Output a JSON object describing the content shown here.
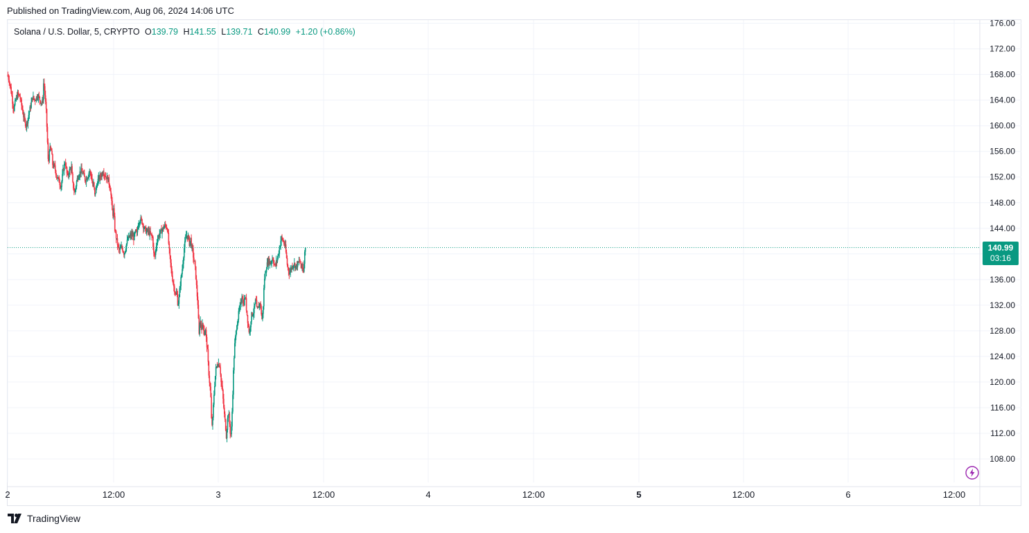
{
  "header": {
    "published": "Published on TradingView.com, Aug 06, 2024 14:06 UTC"
  },
  "legend": {
    "symbol": "Solana / U.S. Dollar, 5, CRYPTO",
    "open_label": "O",
    "open": "139.79",
    "high_label": "H",
    "high": "141.55",
    "low_label": "L",
    "low": "139.71",
    "close_label": "C",
    "close": "140.99",
    "change": "+1.20 (+0.86%)"
  },
  "price_tag": {
    "last": "140.99",
    "countdown": "03:16"
  },
  "brand": {
    "name": "TradingView"
  },
  "colors": {
    "up": "#089981",
    "down": "#f23645",
    "grid": "#f0f3fa",
    "text": "#131722"
  },
  "icons": {
    "flash": "lightning-icon",
    "logo": "tradingview-logo-icon"
  },
  "chart_data": {
    "type": "candlestick",
    "title": "Solana / U.S. Dollar, 5, CRYPTO",
    "interval": "5",
    "ylim": [
      104,
      177
    ],
    "y_ticks": [
      "108.00",
      "112.00",
      "116.00",
      "120.00",
      "124.00",
      "128.00",
      "132.00",
      "136.00",
      "140.00",
      "144.00",
      "148.00",
      "152.00",
      "156.00",
      "160.00",
      "164.00",
      "168.00",
      "172.00",
      "176.00"
    ],
    "x_ticks": [
      "2",
      "12:00",
      "3",
      "12:00",
      "4",
      "12:00",
      "5",
      "12:00",
      "6",
      "12:00"
    ],
    "x_ticks_bold": [
      "5"
    ],
    "last_price": 140.99,
    "series_path": [
      [
        0.0,
        168.0
      ],
      [
        0.01,
        167.0
      ],
      [
        0.02,
        165.0
      ],
      [
        0.03,
        162.5
      ],
      [
        0.04,
        164.0
      ],
      [
        0.05,
        165.0
      ],
      [
        0.06,
        164.5
      ],
      [
        0.08,
        161.0
      ],
      [
        0.09,
        160.0
      ],
      [
        0.1,
        161.5
      ],
      [
        0.11,
        163.0
      ],
      [
        0.12,
        164.5
      ],
      [
        0.13,
        164.0
      ],
      [
        0.145,
        164.8
      ],
      [
        0.155,
        164.0
      ],
      [
        0.165,
        163.5
      ],
      [
        0.17,
        164.5
      ],
      [
        0.173,
        167.3
      ],
      [
        0.178,
        165.0
      ],
      [
        0.185,
        162.0
      ],
      [
        0.19,
        158.0
      ],
      [
        0.195,
        153.5
      ],
      [
        0.2,
        156.5
      ],
      [
        0.21,
        156.0
      ],
      [
        0.215,
        154.0
      ],
      [
        0.225,
        153.5
      ],
      [
        0.235,
        152.0
      ],
      [
        0.245,
        151.5
      ],
      [
        0.255,
        150.5
      ],
      [
        0.265,
        153.0
      ],
      [
        0.275,
        154.5
      ],
      [
        0.285,
        152.0
      ],
      [
        0.295,
        153.0
      ],
      [
        0.305,
        153.5
      ],
      [
        0.31,
        151.0
      ],
      [
        0.32,
        149.5
      ],
      [
        0.33,
        151.5
      ],
      [
        0.34,
        152.5
      ],
      [
        0.35,
        153.0
      ],
      [
        0.36,
        152.5
      ],
      [
        0.37,
        151.5
      ],
      [
        0.38,
        152.0
      ],
      [
        0.39,
        153.0
      ],
      [
        0.4,
        152.0
      ],
      [
        0.405,
        150.5
      ],
      [
        0.41,
        151.0
      ],
      [
        0.415,
        149.0
      ],
      [
        0.42,
        150.0
      ],
      [
        0.43,
        151.5
      ],
      [
        0.44,
        152.0
      ],
      [
        0.45,
        152.5
      ],
      [
        0.455,
        153.0
      ],
      [
        0.46,
        152.5
      ],
      [
        0.47,
        152.0
      ],
      [
        0.48,
        151.5
      ],
      [
        0.49,
        150.0
      ],
      [
        0.5,
        146.0
      ],
      [
        0.505,
        147.0
      ],
      [
        0.51,
        144.0
      ],
      [
        0.52,
        142.0
      ],
      [
        0.53,
        140.5
      ],
      [
        0.545,
        141.0
      ],
      [
        0.555,
        140.0
      ],
      [
        0.565,
        141.5
      ],
      [
        0.575,
        142.5
      ],
      [
        0.59,
        143.0
      ],
      [
        0.6,
        142.5
      ],
      [
        0.61,
        143.5
      ],
      [
        0.615,
        143.0
      ],
      [
        0.62,
        144.5
      ],
      [
        0.63,
        145.5
      ],
      [
        0.64,
        145.0
      ],
      [
        0.65,
        144.0
      ],
      [
        0.66,
        143.5
      ],
      [
        0.67,
        143.5
      ],
      [
        0.68,
        143.0
      ],
      [
        0.69,
        142.5
      ],
      [
        0.695,
        140.0
      ],
      [
        0.7,
        139.5
      ],
      [
        0.71,
        142.0
      ],
      [
        0.72,
        143.0
      ],
      [
        0.73,
        143.5
      ],
      [
        0.74,
        144.0
      ],
      [
        0.75,
        144.5
      ],
      [
        0.76,
        144.0
      ],
      [
        0.765,
        142.0
      ],
      [
        0.77,
        140.0
      ],
      [
        0.78,
        137.0
      ],
      [
        0.79,
        135.0
      ],
      [
        0.8,
        133.5
      ],
      [
        0.805,
        134.0
      ],
      [
        0.81,
        132.0
      ],
      [
        0.815,
        133.0
      ],
      [
        0.82,
        135.0
      ],
      [
        0.83,
        137.5
      ],
      [
        0.84,
        141.0
      ],
      [
        0.85,
        143.0
      ],
      [
        0.86,
        142.5
      ],
      [
        0.865,
        141.5
      ],
      [
        0.87,
        142.5
      ],
      [
        0.875,
        141.0
      ],
      [
        0.88,
        140.5
      ],
      [
        0.885,
        139.0
      ],
      [
        0.89,
        138.5
      ],
      [
        0.895,
        136.5
      ],
      [
        0.9,
        134.0
      ],
      [
        0.905,
        132.0
      ],
      [
        0.91,
        127.0
      ],
      [
        0.915,
        130.0
      ],
      [
        0.92,
        128.5
      ],
      [
        0.93,
        129.0
      ],
      [
        0.935,
        127.5
      ],
      [
        0.94,
        128.5
      ],
      [
        0.945,
        126.5
      ],
      [
        0.95,
        125.0
      ],
      [
        0.955,
        122.0
      ],
      [
        0.96,
        120.0
      ],
      [
        0.965,
        118.5
      ],
      [
        0.97,
        113.0
      ],
      [
        0.975,
        114.0
      ],
      [
        0.98,
        117.5
      ],
      [
        0.985,
        120.0
      ],
      [
        0.99,
        122.0
      ],
      [
        1.0,
        123.0
      ],
      [
        1.01,
        122.5
      ],
      [
        1.015,
        120.0
      ],
      [
        1.02,
        119.0
      ],
      [
        1.025,
        117.0
      ],
      [
        1.03,
        115.0
      ],
      [
        1.035,
        113.5
      ],
      [
        1.04,
        111.5
      ],
      [
        1.045,
        114.0
      ],
      [
        1.05,
        115.5
      ],
      [
        1.055,
        113.5
      ],
      [
        1.06,
        111.5
      ],
      [
        1.065,
        113.0
      ],
      [
        1.07,
        118.0
      ],
      [
        1.075,
        123.0
      ],
      [
        1.08,
        126.0
      ],
      [
        1.09,
        129.0
      ],
      [
        1.1,
        131.0
      ],
      [
        1.11,
        132.5
      ],
      [
        1.115,
        134.0
      ],
      [
        1.12,
        132.0
      ],
      [
        1.13,
        133.5
      ],
      [
        1.135,
        131.5
      ],
      [
        1.14,
        130.0
      ],
      [
        1.145,
        128.5
      ],
      [
        1.15,
        127.5
      ],
      [
        1.155,
        129.5
      ],
      [
        1.16,
        130.5
      ],
      [
        1.17,
        131.0
      ],
      [
        1.18,
        133.0
      ],
      [
        1.185,
        131.0
      ],
      [
        1.19,
        131.5
      ],
      [
        1.2,
        132.5
      ],
      [
        1.205,
        131.0
      ],
      [
        1.21,
        129.5
      ],
      [
        1.215,
        132.0
      ],
      [
        1.22,
        136.0
      ],
      [
        1.23,
        138.0
      ],
      [
        1.24,
        139.0
      ],
      [
        1.25,
        138.5
      ],
      [
        1.26,
        139.5
      ],
      [
        1.27,
        138.0
      ],
      [
        1.28,
        139.0
      ],
      [
        1.29,
        140.5
      ],
      [
        1.3,
        142.5
      ],
      [
        1.31,
        142.0
      ],
      [
        1.32,
        141.0
      ],
      [
        1.325,
        139.5
      ],
      [
        1.33,
        138.0
      ],
      [
        1.34,
        137.0
      ],
      [
        1.35,
        138.0
      ],
      [
        1.36,
        138.5
      ],
      [
        1.37,
        138.0
      ],
      [
        1.38,
        138.5
      ],
      [
        1.39,
        139.0
      ],
      [
        1.395,
        137.5
      ],
      [
        1.4,
        138.5
      ],
      [
        1.405,
        137.0
      ],
      [
        1.41,
        139.5
      ],
      [
        1.415,
        140.99
      ]
    ]
  }
}
